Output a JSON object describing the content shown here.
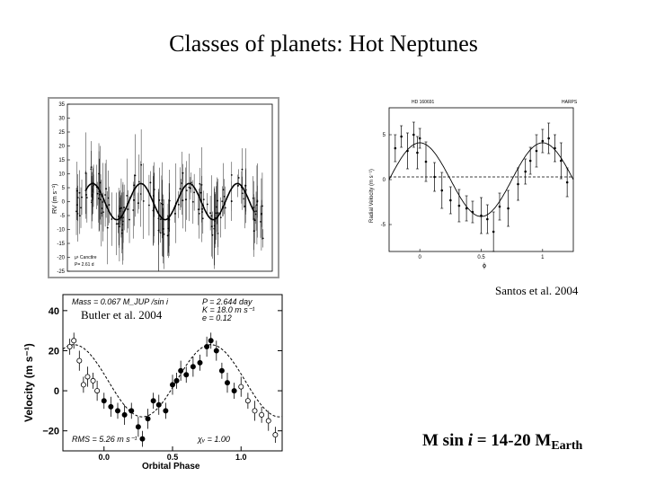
{
  "title": "Classes of planets: Hot Neptunes",
  "captions": {
    "santos": "Santos et al. 2004",
    "butler": "Butler et al. 2004"
  },
  "mass_statement": {
    "prefix": "M sin ",
    "italic": "i",
    "middle": " = 14-20 M",
    "subscript": "Earth"
  },
  "chart_data": [
    {
      "type": "scatter",
      "panel": "top-left",
      "ylabel": "RV (m s⁻¹)",
      "ylim": [
        -25,
        35
      ],
      "yticks": [
        -25,
        -20,
        -15,
        -10,
        -5,
        0,
        5,
        10,
        15,
        20,
        25,
        30,
        35
      ],
      "annotation": [
        "μ¹ Canctlre",
        "P= 2.61 d"
      ],
      "model": {
        "amplitude": 6.5,
        "offset": 0,
        "cycles": 3.5
      }
    },
    {
      "type": "scatter",
      "panel": "top-right",
      "header": "HD 160691",
      "instrument": "HARPS",
      "xlabel": "ϕ",
      "ylabel": "Radial Velocity (m s⁻¹)",
      "xlim": [
        -0.25,
        1.25
      ],
      "ylim": [
        -8,
        8
      ],
      "xticks": [
        0,
        0.5,
        1
      ],
      "xtick_labels": [
        "0",
        "0.5",
        "1"
      ],
      "yticks": [
        -5,
        0,
        5
      ],
      "ytick_labels": [
        "-5",
        "0",
        "5"
      ],
      "model": {
        "amplitude": 4.1,
        "phase_of_minimum": 0.5
      },
      "points": [
        {
          "x": -0.2,
          "y": 3.5,
          "err": 1.5
        },
        {
          "x": -0.15,
          "y": 4.8,
          "err": 1.2
        },
        {
          "x": -0.1,
          "y": 3.2,
          "err": 2.0
        },
        {
          "x": -0.05,
          "y": 5.0,
          "err": 1.4
        },
        {
          "x": -0.02,
          "y": 3.0,
          "err": 1.8
        },
        {
          "x": 0.0,
          "y": 4.6,
          "err": 1.1
        },
        {
          "x": 0.05,
          "y": 2.0,
          "err": 2.2
        },
        {
          "x": 0.12,
          "y": 0.3,
          "err": 1.6
        },
        {
          "x": 0.18,
          "y": -1.2,
          "err": 2.0
        },
        {
          "x": 0.25,
          "y": -2.3,
          "err": 1.5
        },
        {
          "x": 0.32,
          "y": -2.9,
          "err": 1.8
        },
        {
          "x": 0.38,
          "y": -3.2,
          "err": 1.4
        },
        {
          "x": 0.43,
          "y": -3.6,
          "err": 1.2
        },
        {
          "x": 0.5,
          "y": -4.0,
          "err": 2.0
        },
        {
          "x": 0.55,
          "y": -4.4,
          "err": 1.6
        },
        {
          "x": 0.6,
          "y": -5.8,
          "err": 2.2
        },
        {
          "x": 0.65,
          "y": -3.0,
          "err": 1.5
        },
        {
          "x": 0.72,
          "y": -3.2,
          "err": 2.0
        },
        {
          "x": 0.8,
          "y": -0.5,
          "err": 1.8
        },
        {
          "x": 0.86,
          "y": 0.9,
          "err": 1.4
        },
        {
          "x": 0.9,
          "y": 2.1,
          "err": 1.5
        },
        {
          "x": 0.95,
          "y": 3.2,
          "err": 1.8
        },
        {
          "x": 1.0,
          "y": 4.3,
          "err": 1.3
        },
        {
          "x": 1.05,
          "y": 4.6,
          "err": 1.7
        },
        {
          "x": 1.1,
          "y": 3.5,
          "err": 1.5
        },
        {
          "x": 1.15,
          "y": 2.1,
          "err": 2.0
        },
        {
          "x": 1.2,
          "y": -0.3,
          "err": 1.6
        }
      ]
    },
    {
      "type": "scatter",
      "panel": "bottom-left",
      "xlabel": "Orbital Phase",
      "ylabel": "Velocity (m s⁻¹)",
      "xlim": [
        -0.3,
        1.3
      ],
      "ylim": [
        -30,
        48
      ],
      "xticks": [
        0,
        0.5,
        1
      ],
      "xtick_labels": [
        "0.0",
        "0.5",
        "1.0"
      ],
      "yticks": [
        -20,
        0,
        20,
        40
      ],
      "ytick_labels": [
        "−20",
        "0",
        "20",
        "40"
      ],
      "annotations": {
        "mass": "Mass = 0.067 M_JUP /sin i",
        "period": "P = 2.644 day",
        "amplitude": "K = 18.0 m s⁻¹",
        "eccentricity": "e = 0.12",
        "rms": "RMS = 5.26 m s⁻¹",
        "chi": "χᵥ = 1.00"
      },
      "model": {
        "amplitude": 18.0,
        "offset": 5.0
      },
      "points": [
        {
          "x": -0.25,
          "y": 22,
          "err": 4
        },
        {
          "x": -0.22,
          "y": 25,
          "err": 4
        },
        {
          "x": -0.18,
          "y": 15,
          "err": 5
        },
        {
          "x": -0.15,
          "y": 3,
          "err": 4
        },
        {
          "x": -0.12,
          "y": 7,
          "err": 5
        },
        {
          "x": -0.08,
          "y": 5,
          "err": 4
        },
        {
          "x": -0.05,
          "y": 0,
          "err": 5
        },
        {
          "x": 0.0,
          "y": -5,
          "err": 4
        },
        {
          "x": 0.05,
          "y": -8,
          "err": 5
        },
        {
          "x": 0.1,
          "y": -10,
          "err": 4
        },
        {
          "x": 0.15,
          "y": -12,
          "err": 5
        },
        {
          "x": 0.2,
          "y": -10,
          "err": 4
        },
        {
          "x": 0.25,
          "y": -18,
          "err": 5
        },
        {
          "x": 0.28,
          "y": -24,
          "err": 4
        },
        {
          "x": 0.32,
          "y": -14,
          "err": 5
        },
        {
          "x": 0.36,
          "y": -5,
          "err": 4
        },
        {
          "x": 0.4,
          "y": -7,
          "err": 5
        },
        {
          "x": 0.45,
          "y": -10,
          "err": 4
        },
        {
          "x": 0.5,
          "y": 3,
          "err": 5
        },
        {
          "x": 0.53,
          "y": 5,
          "err": 4
        },
        {
          "x": 0.56,
          "y": 10,
          "err": 5
        },
        {
          "x": 0.6,
          "y": 8,
          "err": 4
        },
        {
          "x": 0.65,
          "y": 12,
          "err": 5
        },
        {
          "x": 0.7,
          "y": 14,
          "err": 4
        },
        {
          "x": 0.75,
          "y": 22,
          "err": 5
        },
        {
          "x": 0.78,
          "y": 25,
          "err": 4
        },
        {
          "x": 0.82,
          "y": 20,
          "err": 5
        },
        {
          "x": 0.86,
          "y": 10,
          "err": 4
        },
        {
          "x": 0.9,
          "y": 4,
          "err": 5
        },
        {
          "x": 0.95,
          "y": 0,
          "err": 4
        },
        {
          "x": 1.0,
          "y": 2,
          "err": 5
        },
        {
          "x": 1.05,
          "y": -5,
          "err": 4
        },
        {
          "x": 1.1,
          "y": -10,
          "err": 5
        },
        {
          "x": 1.15,
          "y": -12,
          "err": 4
        },
        {
          "x": 1.2,
          "y": -15,
          "err": 5
        },
        {
          "x": 1.25,
          "y": -22,
          "err": 4
        }
      ],
      "open_points_phase_ranges": [
        [
          -0.3,
          0.0
        ],
        [
          1.0,
          1.3
        ]
      ]
    }
  ]
}
